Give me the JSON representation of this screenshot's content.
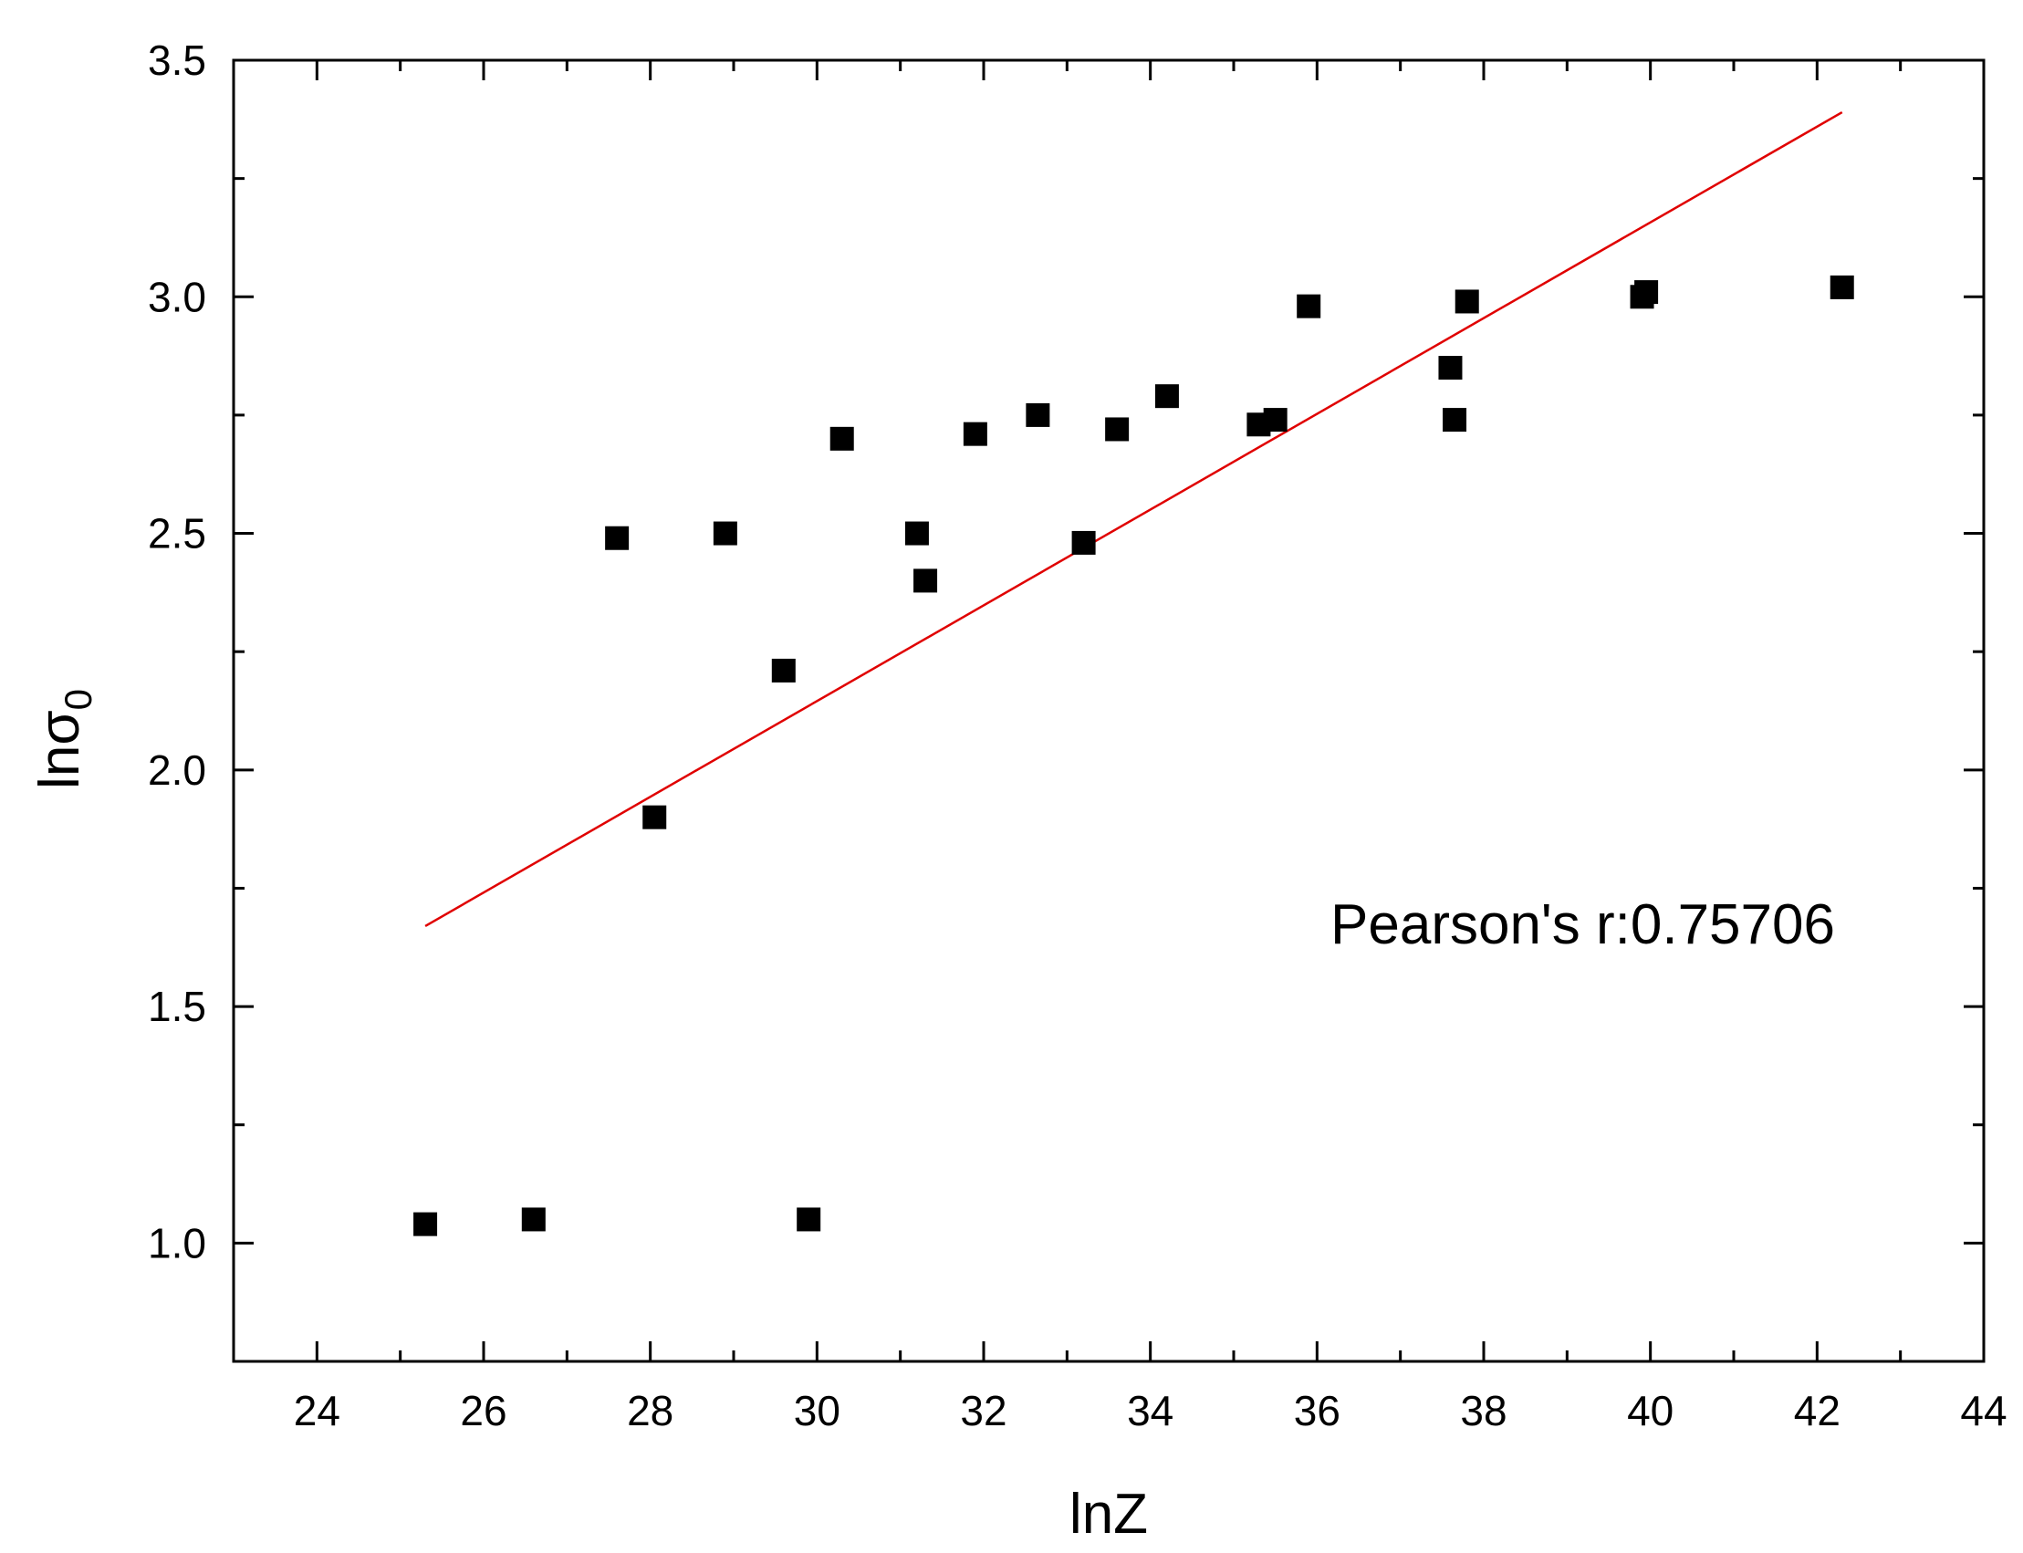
{
  "chart_data": {
    "type": "scatter",
    "xlabel": "lnZ",
    "ylabel": {
      "main": "lnσ",
      "sub": "0"
    },
    "xlim": [
      23,
      44
    ],
    "ylim": [
      0.75,
      3.5
    ],
    "xticks": [
      "24",
      "26",
      "28",
      "30",
      "32",
      "34",
      "36",
      "38",
      "40",
      "42",
      "44"
    ],
    "yticks": [
      "1.0",
      "1.5",
      "2.0",
      "2.5",
      "3.0",
      "3.5"
    ],
    "grid": false,
    "annotation": "Pearson's r:0.75706",
    "series": [
      {
        "marker": "square",
        "color": "#000000",
        "points": [
          [
            25.3,
            1.04
          ],
          [
            26.6,
            1.05
          ],
          [
            27.6,
            2.49
          ],
          [
            28.05,
            1.9
          ],
          [
            28.9,
            2.5
          ],
          [
            29.6,
            2.21
          ],
          [
            29.9,
            1.05
          ],
          [
            30.3,
            2.7
          ],
          [
            31.2,
            2.5
          ],
          [
            31.3,
            2.4
          ],
          [
            31.9,
            2.71
          ],
          [
            32.65,
            2.75
          ],
          [
            33.2,
            2.48
          ],
          [
            33.6,
            2.72
          ],
          [
            34.2,
            2.79
          ],
          [
            35.3,
            2.73
          ],
          [
            35.5,
            2.74
          ],
          [
            35.9,
            2.98
          ],
          [
            37.6,
            2.85
          ],
          [
            37.65,
            2.74
          ],
          [
            37.8,
            2.99
          ],
          [
            39.9,
            3.0
          ],
          [
            39.95,
            3.01
          ],
          [
            42.3,
            3.02
          ]
        ]
      }
    ],
    "fit_line": {
      "color": "#e00000",
      "points": [
        [
          25.3,
          1.67
        ],
        [
          42.3,
          3.39
        ]
      ]
    }
  }
}
